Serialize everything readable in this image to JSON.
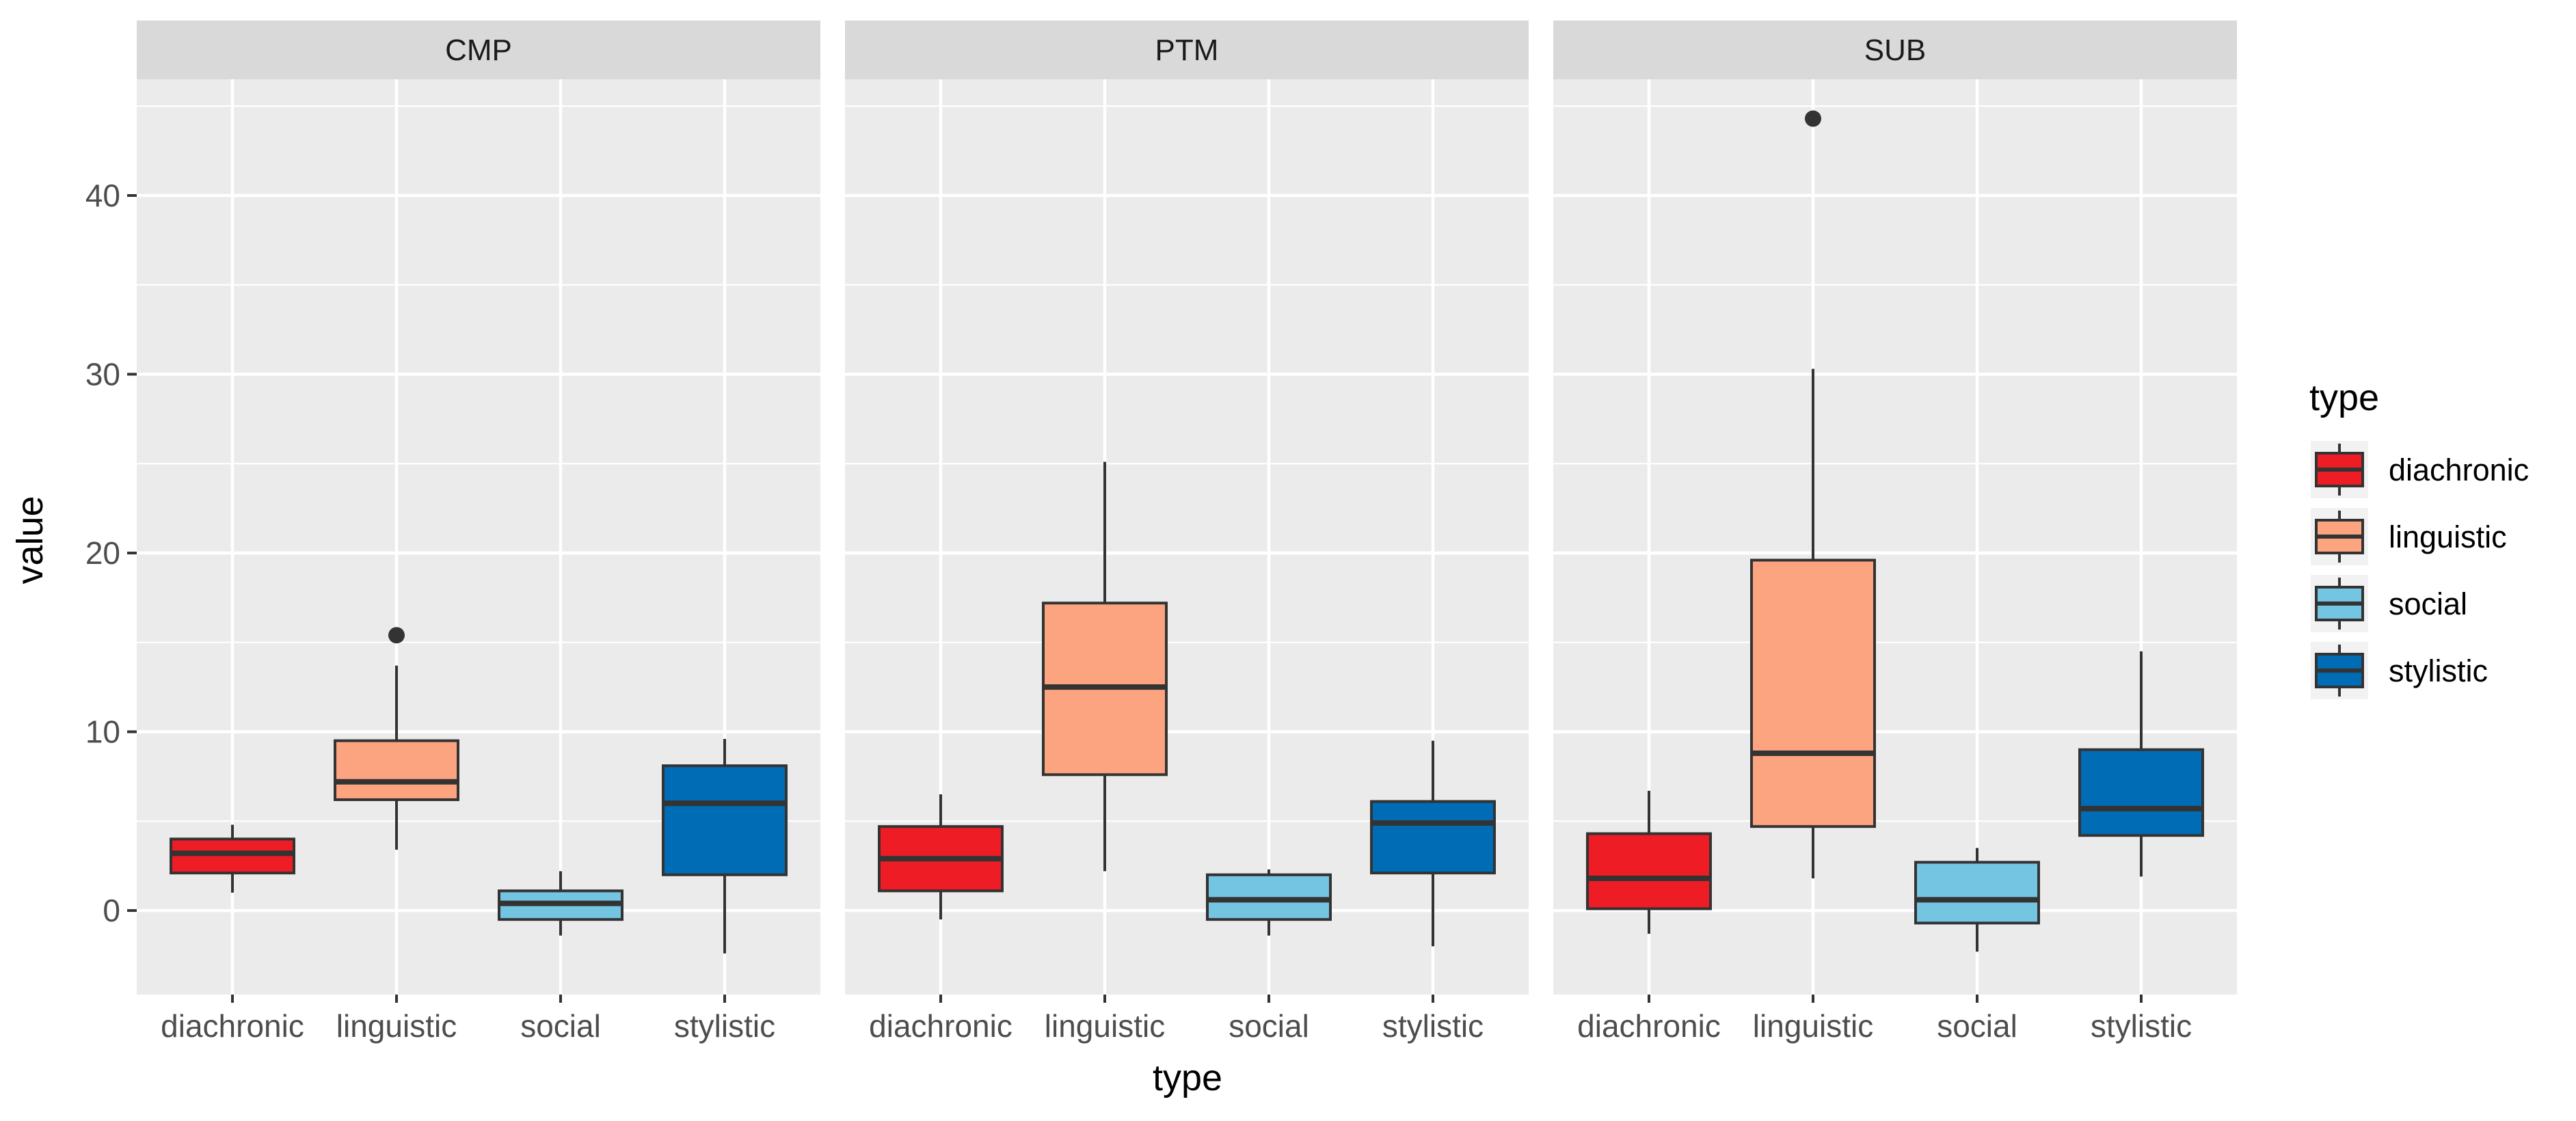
{
  "chart_data": {
    "type": "boxplot",
    "facet_variable": "",
    "facets": [
      "CMP",
      "PTM",
      "SUB"
    ],
    "categories": [
      "diachronic",
      "linguistic",
      "social",
      "stylistic"
    ],
    "xlabel": "type",
    "ylabel": "value",
    "ylim": [
      -4.7,
      46.5
    ],
    "yticks": [
      0,
      10,
      20,
      30,
      40
    ],
    "grid": true,
    "legend": {
      "title": "type",
      "position": "right",
      "entries": [
        "diachronic",
        "linguistic",
        "social",
        "stylistic"
      ]
    },
    "colors": {
      "diachronic": "#EE1C25",
      "linguistic": "#FCA47F",
      "social": "#74C5E2",
      "stylistic": "#006CB5",
      "panel_bg": "#EBEBEB",
      "strip_bg": "#D9D9D9",
      "grid_major": "#FFFFFF",
      "outline": "#333333"
    },
    "series": [
      {
        "facet": "CMP",
        "boxes": [
          {
            "category": "diachronic",
            "whisker_low": 1.0,
            "q1": 2.1,
            "median": 3.2,
            "q3": 4.0,
            "whisker_high": 4.8,
            "outliers": []
          },
          {
            "category": "linguistic",
            "whisker_low": 3.4,
            "q1": 6.2,
            "median": 7.2,
            "q3": 9.5,
            "whisker_high": 13.7,
            "outliers": [
              15.4
            ]
          },
          {
            "category": "social",
            "whisker_low": -1.4,
            "q1": -0.5,
            "median": 0.4,
            "q3": 1.1,
            "whisker_high": 2.2,
            "outliers": []
          },
          {
            "category": "stylistic",
            "whisker_low": -2.4,
            "q1": 2.0,
            "median": 6.0,
            "q3": 8.1,
            "whisker_high": 9.6,
            "outliers": []
          }
        ]
      },
      {
        "facet": "PTM",
        "boxes": [
          {
            "category": "diachronic",
            "whisker_low": -0.5,
            "q1": 1.1,
            "median": 2.9,
            "q3": 4.7,
            "whisker_high": 6.5,
            "outliers": []
          },
          {
            "category": "linguistic",
            "whisker_low": 2.2,
            "q1": 7.6,
            "median": 12.5,
            "q3": 17.2,
            "whisker_high": 25.1,
            "outliers": []
          },
          {
            "category": "social",
            "whisker_low": -1.4,
            "q1": -0.5,
            "median": 0.6,
            "q3": 2.0,
            "whisker_high": 2.3,
            "outliers": []
          },
          {
            "category": "stylistic",
            "whisker_low": -2.0,
            "q1": 2.1,
            "median": 4.9,
            "q3": 6.1,
            "whisker_high": 9.5,
            "outliers": []
          }
        ]
      },
      {
        "facet": "SUB",
        "boxes": [
          {
            "category": "diachronic",
            "whisker_low": -1.3,
            "q1": 0.1,
            "median": 1.8,
            "q3": 4.3,
            "whisker_high": 6.7,
            "outliers": []
          },
          {
            "category": "linguistic",
            "whisker_low": 1.8,
            "q1": 4.7,
            "median": 8.8,
            "q3": 19.6,
            "whisker_high": 30.3,
            "outliers": [
              44.3
            ]
          },
          {
            "category": "social",
            "whisker_low": -2.3,
            "q1": -0.7,
            "median": 0.6,
            "q3": 2.7,
            "whisker_high": 3.5,
            "outliers": []
          },
          {
            "category": "stylistic",
            "whisker_low": 1.9,
            "q1": 4.2,
            "median": 5.7,
            "q3": 9.0,
            "whisker_high": 14.5,
            "outliers": []
          }
        ]
      }
    ]
  }
}
